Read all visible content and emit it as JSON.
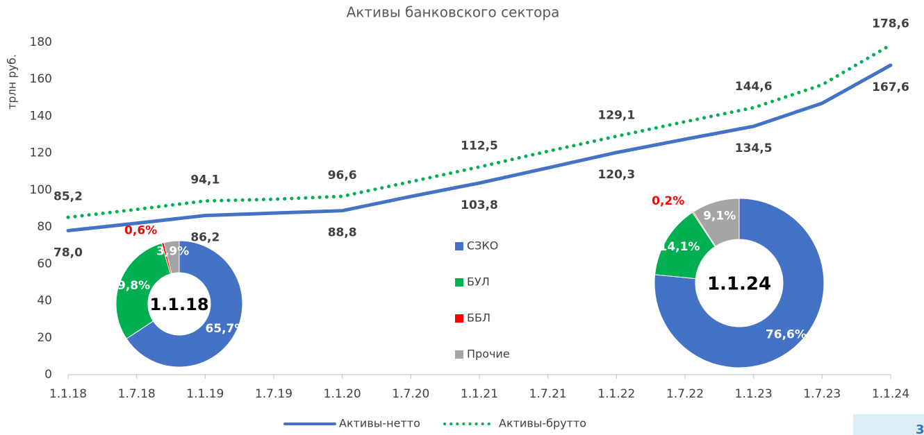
{
  "chart_data": [
    {
      "type": "line",
      "title": "Активы банковского сектора",
      "y_label": "трлн руб.",
      "categories": [
        "1.1.18",
        "1.7.18",
        "1.1.19",
        "1.7.19",
        "1.1.20",
        "1.7.20",
        "1.1.21",
        "1.7.21",
        "1.1.22",
        "1.7.22",
        "1.1.23",
        "1.7.23",
        "1.1.24"
      ],
      "series": [
        {
          "name": "Активы-нетто",
          "color": "#4472c4",
          "style": "solid",
          "values": [
            78.0,
            82.0,
            86.2,
            87.5,
            88.8,
            96.5,
            103.8,
            112.0,
            120.3,
            127.5,
            134.5,
            147.0,
            167.6
          ],
          "value_labels": [
            "78,0",
            null,
            "86,2",
            null,
            "88,8",
            null,
            "103,8",
            null,
            "120,3",
            null,
            "134,5",
            null,
            "167,6"
          ]
        },
        {
          "name": "Активы-брутто",
          "color": "#00b050",
          "style": "dotted",
          "values": [
            85.2,
            89.5,
            94.1,
            95.0,
            96.6,
            104.5,
            112.5,
            121.0,
            129.1,
            137.0,
            144.6,
            157.0,
            178.6
          ],
          "value_labels": [
            "85,2",
            null,
            "94,1",
            null,
            "96,6",
            null,
            "112,5",
            null,
            "129,1",
            null,
            "144,6",
            null,
            "178,6"
          ]
        }
      ],
      "ylim": [
        0,
        180
      ],
      "yticks": [
        0,
        20,
        40,
        60,
        80,
        100,
        120,
        140,
        160,
        180
      ],
      "legend": "bottom"
    },
    {
      "type": "pie",
      "center_label": "1.1.18",
      "categories": [
        "СЗКО",
        "БУЛ",
        "ББЛ",
        "Прочие"
      ],
      "colors": [
        "#4472c4",
        "#00b050",
        "#ff0000",
        "#a5a5a5"
      ],
      "values": [
        65.7,
        29.8,
        0.6,
        3.9
      ],
      "value_labels": [
        "65,7%",
        "29,8%",
        "0,6%",
        "3,9%"
      ]
    },
    {
      "type": "pie",
      "center_label": "1.1.24",
      "colors": [
        "#4472c4",
        "#00b050",
        "#ff0000",
        "#a5a5a5"
      ],
      "values": [
        76.6,
        14.1,
        0.2,
        9.1
      ],
      "value_labels": [
        "76,6%",
        "14,1%",
        "0,2%",
        "9,1%"
      ]
    }
  ],
  "page_number": "3"
}
